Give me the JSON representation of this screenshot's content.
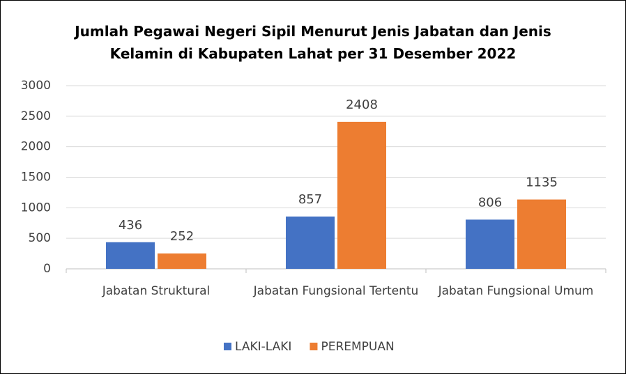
{
  "chart_data": {
    "type": "bar",
    "title": "Jumlah Pegawai Negeri Sipil Menurut Jenis Jabatan dan Jenis Kelamin di Kabupaten Lahat per 31 Desember 2022",
    "categories": [
      "Jabatan Struktural",
      "Jabatan Fungsional Tertentu",
      "Jabatan Fungsional Umum"
    ],
    "series": [
      {
        "name": "LAKI-LAKI",
        "color": "#4472c4",
        "values": [
          436,
          857,
          806
        ]
      },
      {
        "name": "PEREMPUAN",
        "color": "#ed7d31",
        "values": [
          252,
          2408,
          1135
        ]
      }
    ],
    "ylim": [
      0,
      3000
    ],
    "yticks": [
      0,
      500,
      1000,
      1500,
      2000,
      2500,
      3000
    ],
    "grid": true,
    "legend": "bottom"
  }
}
